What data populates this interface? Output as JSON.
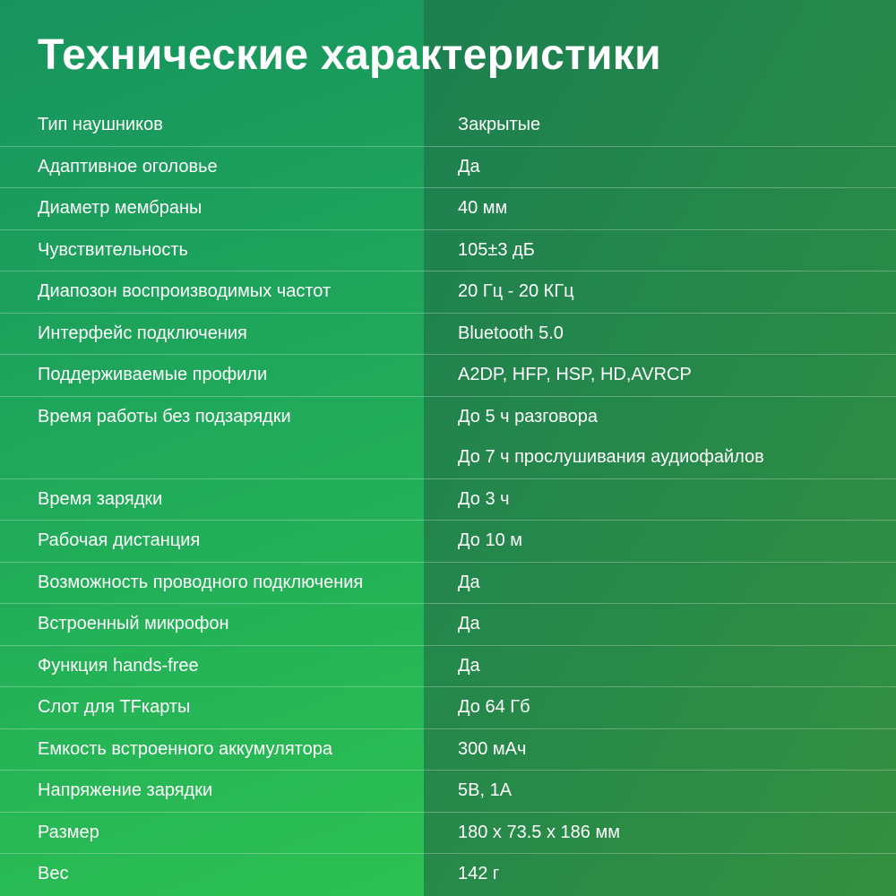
{
  "title": "Технические характеристики",
  "specs": [
    {
      "label": "Тип  наушников",
      "values": [
        "Закрытые"
      ]
    },
    {
      "label": "Адаптивное оголовье",
      "values": [
        "Да"
      ]
    },
    {
      "label": "Диаметр мембраны",
      "values": [
        "40 мм"
      ]
    },
    {
      "label": "Чувствительность",
      "values": [
        "105±3 дБ"
      ]
    },
    {
      "label": "Диапозон воспроизводимых частот",
      "values": [
        "20 Гц - 20 КГц"
      ]
    },
    {
      "label": "Интерфейс подключения",
      "values": [
        "Bluetooth 5.0"
      ]
    },
    {
      "label": "Поддерживаемые профили",
      "values": [
        "A2DP, HFP, HSP, HD,AVRCP"
      ]
    },
    {
      "label": "Время работы без подзарядки",
      "values": [
        "До 5 ч разговора",
        "До 7 ч прослушивания аудиофайлов"
      ]
    },
    {
      "label": "Время зарядки",
      "values": [
        "До 3 ч"
      ]
    },
    {
      "label": "Рабочая дистанция",
      "values": [
        "До 10 м"
      ]
    },
    {
      "label": "Возможность проводного подключения",
      "values": [
        "Да"
      ]
    },
    {
      "label": "Встроенный микрофон",
      "values": [
        "Да"
      ]
    },
    {
      "label": "Функция hands-free",
      "values": [
        "Да"
      ]
    },
    {
      "label": "Слот для TFкарты",
      "values": [
        "До 64 Гб"
      ]
    },
    {
      "label": "Емкость встроенного аккумулятора",
      "values": [
        "300 мАч"
      ]
    },
    {
      "label": "Напряжение зарядки",
      "values": [
        "5В, 1А"
      ]
    },
    {
      "label": "Размер",
      "values": [
        "180 x 73.5 x 186 мм"
      ]
    },
    {
      "label": "Вес",
      "values": [
        "142 г"
      ]
    }
  ]
}
